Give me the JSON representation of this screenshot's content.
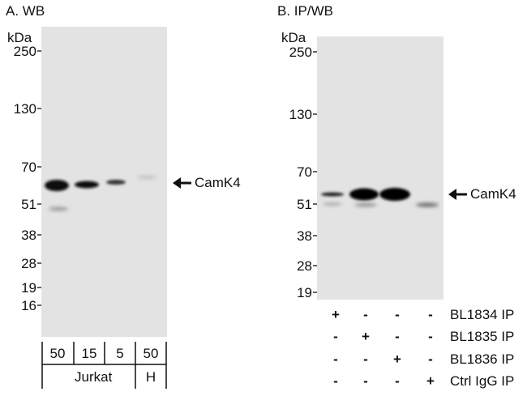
{
  "panel_a": {
    "title": "A. WB",
    "unit": "kDa",
    "markers": [
      "250",
      "130",
      "70",
      "51",
      "38",
      "28",
      "19",
      "16"
    ],
    "target_label": "CamK4",
    "lane_amounts": [
      "50",
      "15",
      "5",
      "50"
    ],
    "sample_groups": [
      "Jurkat",
      "H"
    ]
  },
  "panel_b": {
    "title": "B. IP/WB",
    "unit": "kDa",
    "markers": [
      "250",
      "130",
      "70",
      "51",
      "38",
      "28",
      "19"
    ],
    "target_label": "CamK4",
    "conditions": [
      {
        "label": "BL1834 IP",
        "signs": [
          "+",
          "-",
          "-",
          "-"
        ]
      },
      {
        "label": "BL1835 IP",
        "signs": [
          "-",
          "+",
          "-",
          "-"
        ]
      },
      {
        "label": "BL1836 IP",
        "signs": [
          "-",
          "-",
          "+",
          "-"
        ]
      },
      {
        "label": "Ctrl IgG IP",
        "signs": [
          "-",
          "-",
          "-",
          "+"
        ]
      }
    ]
  },
  "colors": {
    "membrane": "#e2e2e2",
    "band": "#0a0a0a"
  }
}
